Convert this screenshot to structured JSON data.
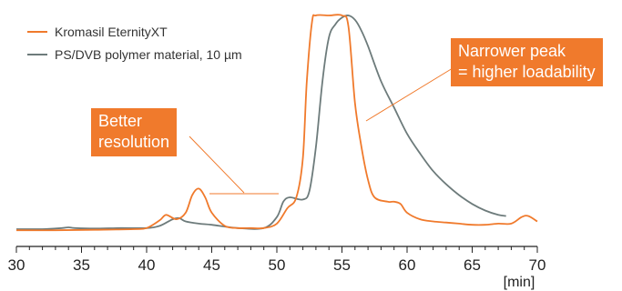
{
  "chart_data": {
    "type": "line",
    "title": "",
    "xlabel": "[min]",
    "ylabel": "",
    "xlim": [
      30,
      70
    ],
    "x_ticks": [
      30,
      35,
      40,
      45,
      50,
      55,
      60,
      65,
      70
    ],
    "x_tick_labels": [
      "30",
      "35",
      "40",
      "45",
      "50",
      "55",
      "60",
      "65",
      "70"
    ],
    "grid": false,
    "legend_position": "top-left",
    "series": [
      {
        "name": "Kromasil EternityXT",
        "color": "#f07a2c",
        "points": [
          [
            30,
            0.02
          ],
          [
            33,
            0.02
          ],
          [
            36,
            0.022
          ],
          [
            39,
            0.025
          ],
          [
            40,
            0.03
          ],
          [
            41,
            0.065
          ],
          [
            41.5,
            0.09
          ],
          [
            42.3,
            0.07
          ],
          [
            43,
            0.1
          ],
          [
            43.5,
            0.18
          ],
          [
            44,
            0.21
          ],
          [
            44.5,
            0.17
          ],
          [
            45,
            0.1
          ],
          [
            46,
            0.04
          ],
          [
            47,
            0.03
          ],
          [
            48,
            0.03
          ],
          [
            49,
            0.03
          ],
          [
            50,
            0.05
          ],
          [
            50.8,
            0.12
          ],
          [
            51.5,
            0.17
          ],
          [
            52,
            0.35
          ],
          [
            52.3,
            0.7
          ],
          [
            52.7,
            0.97
          ],
          [
            53,
            1.0
          ],
          [
            54,
            1.0
          ],
          [
            55,
            1.0
          ],
          [
            55.5,
            0.95
          ],
          [
            56,
            0.6
          ],
          [
            56.5,
            0.4
          ],
          [
            57,
            0.25
          ],
          [
            57.5,
            0.17
          ],
          [
            58.5,
            0.15
          ],
          [
            59,
            0.15
          ],
          [
            59.5,
            0.14
          ],
          [
            60,
            0.1
          ],
          [
            61,
            0.07
          ],
          [
            62,
            0.06
          ],
          [
            63,
            0.055
          ],
          [
            64,
            0.05
          ],
          [
            65,
            0.045
          ],
          [
            66,
            0.045
          ],
          [
            67,
            0.05
          ],
          [
            68,
            0.05
          ],
          [
            68.8,
            0.08
          ],
          [
            69.3,
            0.085
          ],
          [
            70,
            0.06
          ]
        ]
      },
      {
        "name": "PS/DVB polymer material, 10 µm",
        "color": "#6d7b7b",
        "points": [
          [
            30,
            0.025
          ],
          [
            32,
            0.025
          ],
          [
            33.5,
            0.03
          ],
          [
            34,
            0.033
          ],
          [
            34.5,
            0.03
          ],
          [
            36,
            0.028
          ],
          [
            38,
            0.03
          ],
          [
            40,
            0.03
          ],
          [
            41,
            0.04
          ],
          [
            42,
            0.07
          ],
          [
            42.5,
            0.075
          ],
          [
            43,
            0.06
          ],
          [
            44,
            0.05
          ],
          [
            45,
            0.045
          ],
          [
            47,
            0.03
          ],
          [
            49,
            0.03
          ],
          [
            50,
            0.08
          ],
          [
            50.5,
            0.15
          ],
          [
            51,
            0.17
          ],
          [
            52,
            0.16
          ],
          [
            52.5,
            0.2
          ],
          [
            53,
            0.4
          ],
          [
            53.5,
            0.7
          ],
          [
            54,
            0.9
          ],
          [
            54.5,
            0.96
          ],
          [
            55,
            0.99
          ],
          [
            55.5,
            1.0
          ],
          [
            56,
            0.98
          ],
          [
            56.5,
            0.93
          ],
          [
            57,
            0.86
          ],
          [
            58,
            0.7
          ],
          [
            59,
            0.58
          ],
          [
            60,
            0.46
          ],
          [
            61,
            0.37
          ],
          [
            62,
            0.29
          ],
          [
            63,
            0.23
          ],
          [
            64,
            0.18
          ],
          [
            65,
            0.14
          ],
          [
            66,
            0.11
          ],
          [
            67,
            0.09
          ],
          [
            67.6,
            0.085
          ]
        ]
      }
    ],
    "annotations": [
      {
        "id": "resolution",
        "lines": [
          "Better",
          "resolution"
        ]
      },
      {
        "id": "loadability",
        "lines": [
          "Narrower peak",
          "= higher loadability"
        ]
      }
    ]
  }
}
